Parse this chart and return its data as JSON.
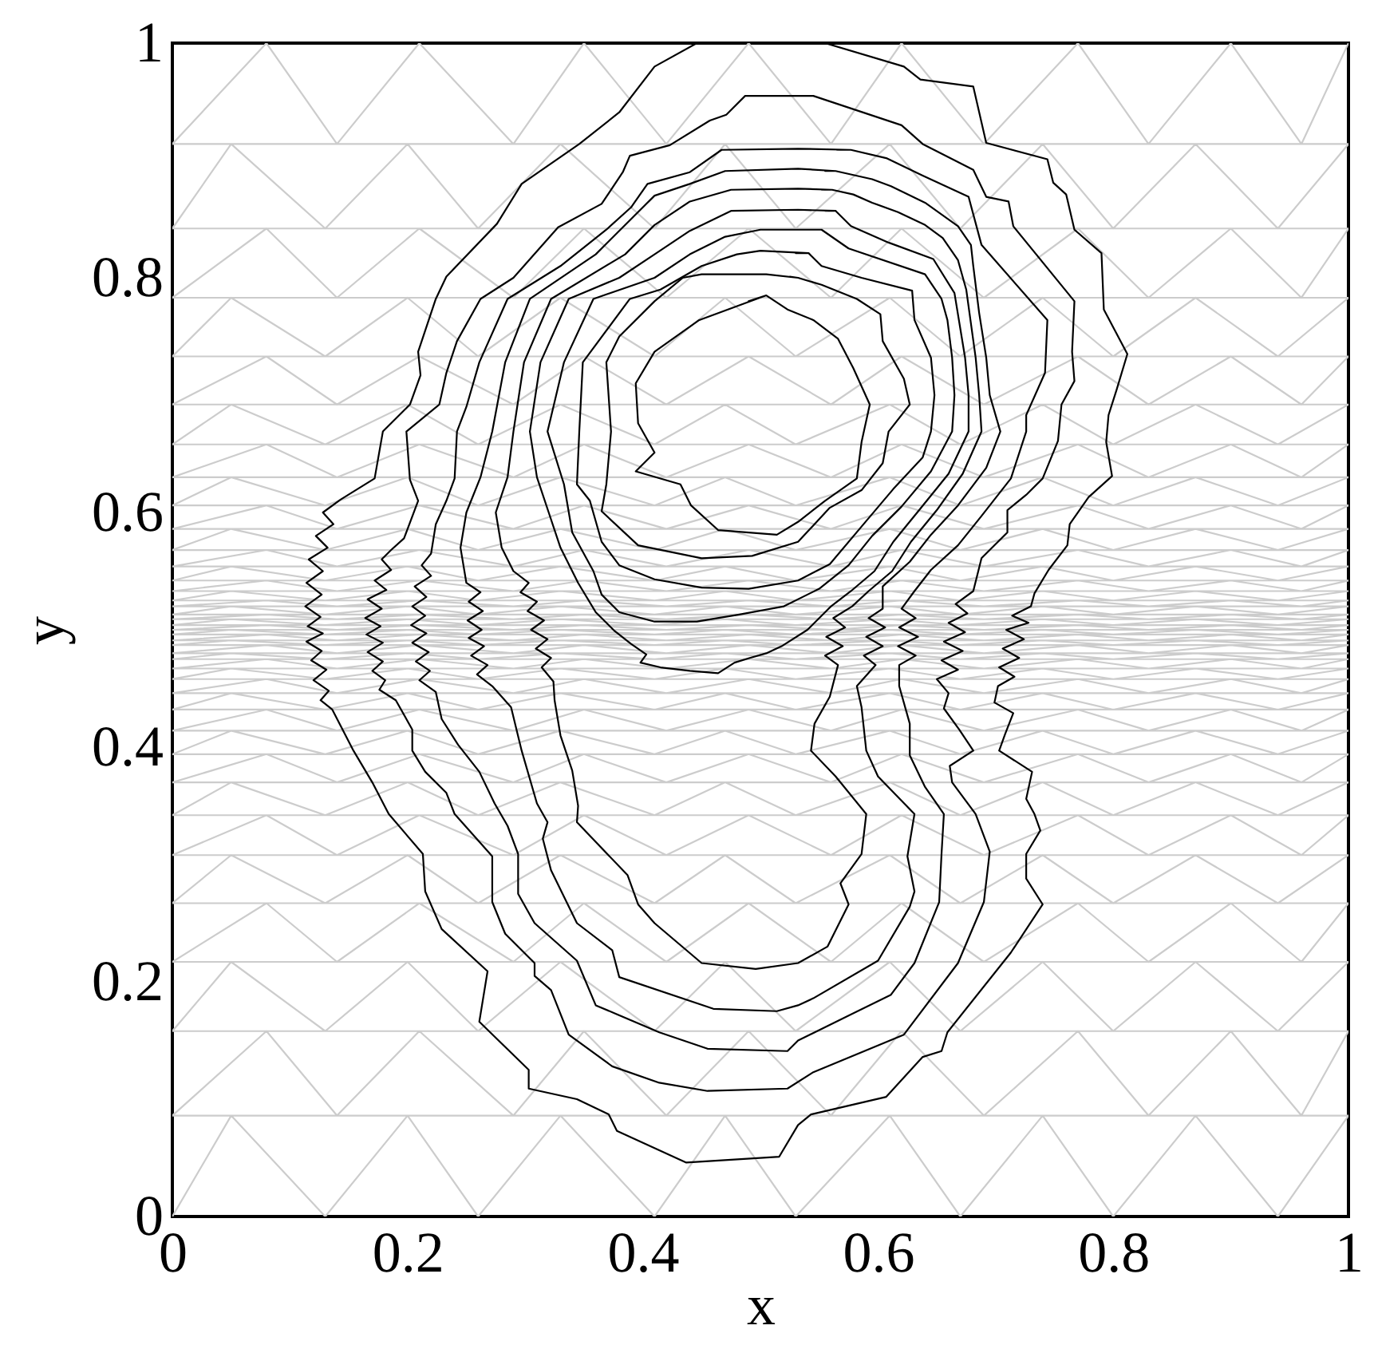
{
  "chart_data": {
    "type": "line",
    "xlabel": "x",
    "ylabel": "y",
    "xlim": [
      0,
      1
    ],
    "ylim": [
      0,
      1
    ],
    "xticks": [
      0,
      0.2,
      0.4,
      0.6,
      0.8,
      1
    ],
    "yticks": [
      0,
      0.2,
      0.4,
      0.6,
      0.8,
      1
    ],
    "series": [
      {
        "color": "#cccccc",
        "x": [
          0,
          0.05,
          0.13,
          0.2,
          0.26,
          0.33,
          0.41,
          0.47,
          0.53,
          0.61,
          0.67,
          0.74,
          0.8,
          0.87,
          0.94,
          1,
          0,
          0.08,
          0.14,
          0.21,
          0.29,
          0.35,
          0.42,
          0.49,
          0.56,
          0.62,
          0.69,
          0.77,
          0.83,
          0.9,
          0.96,
          1,
          0,
          0.05,
          0.13,
          0.2,
          0.26,
          0.33,
          0.41,
          0.47,
          0.53,
          0.61,
          0.67,
          0.74,
          0.8,
          0.87,
          0.94,
          1,
          0,
          0.08,
          0.14,
          0.21,
          0.29,
          0.35,
          0.42,
          0.49,
          0.56,
          0.62,
          0.69,
          0.77,
          0.83,
          0.9,
          0.96,
          1,
          0,
          0.05,
          0.13,
          0.2,
          0.26,
          0.33,
          0.41,
          0.47,
          0.53,
          0.61,
          0.67,
          0.74,
          0.8,
          0.87,
          0.94,
          1,
          0,
          0.08,
          0.14,
          0.21,
          0.29,
          0.35,
          0.42,
          0.49,
          0.56,
          0.62,
          0.69,
          0.77,
          0.83,
          0.9,
          0.96,
          1,
          0,
          0.05,
          0.13,
          0.2,
          0.26,
          0.33,
          0.41,
          0.47,
          0.53,
          0.61,
          0.67,
          0.74,
          0.8,
          0.87,
          0.94,
          1,
          0,
          0.08,
          0.14,
          0.21,
          0.29,
          0.35,
          0.42,
          0.49,
          0.56,
          0.62,
          0.69,
          0.77,
          0.83,
          0.9,
          0.96,
          1,
          0,
          0.05,
          0.13,
          0.2,
          0.26,
          0.33,
          0.41,
          0.47,
          0.53,
          0.61,
          0.67,
          0.74,
          0.8,
          0.87,
          0.94,
          1,
          0,
          0.08,
          0.14,
          0.21,
          0.29,
          0.35,
          0.42,
          0.49,
          0.56,
          0.62,
          0.69,
          0.77,
          0.83,
          0.9,
          0.96,
          1,
          0,
          0.05,
          0.13,
          0.2,
          0.26,
          0.33,
          0.41,
          0.47,
          0.53,
          0.61,
          0.67,
          0.74,
          0.8,
          0.87,
          0.94,
          1,
          0,
          0.08,
          0.14,
          0.21,
          0.29,
          0.35,
          0.42,
          0.49,
          0.56,
          0.62,
          0.69,
          0.77,
          0.83,
          0.9,
          0.96,
          1,
          0,
          0.05,
          0.13,
          0.2,
          0.26,
          0.33,
          0.41,
          0.47,
          0.53,
          0.61,
          0.67,
          0.74,
          0.8,
          0.87,
          0.94,
          1,
          0,
          0.08,
          0.14,
          0.21,
          0.29,
          0.35,
          0.42,
          0.49,
          0.56,
          0.62,
          0.69,
          0.77,
          0.83,
          0.9,
          0.96,
          1,
          0,
          0.05,
          0.13,
          0.2,
          0.26,
          0.33,
          0.41,
          0.47,
          0.53,
          0.61,
          0.67,
          0.74,
          0.8,
          0.87,
          0.94,
          1,
          0,
          0.08,
          0.14,
          0.21,
          0.29,
          0.35,
          0.42,
          0.49,
          0.56,
          0.62,
          0.69,
          0.77,
          0.83,
          0.9,
          0.96,
          1,
          0,
          0.05,
          0.13,
          0.2,
          0.26,
          0.33,
          0.41,
          0.47,
          0.53,
          0.61,
          0.67,
          0.74,
          0.8,
          0.87,
          0.94,
          1,
          0,
          0.08,
          0.14,
          0.21,
          0.29,
          0.35,
          0.42,
          0.49,
          0.56,
          0.62,
          0.69,
          0.77,
          0.83,
          0.9,
          0.96,
          1,
          0,
          0.05,
          0.13,
          0.2,
          0.26,
          0.33,
          0.41,
          0.47,
          0.53,
          0.61,
          0.67,
          0.74,
          0.8,
          0.87,
          0.94,
          1,
          0,
          0.08,
          0.14,
          0.21,
          0.29,
          0.35,
          0.42,
          0.49,
          0.56,
          0.62,
          0.69,
          0.77,
          0.83,
          0.9,
          0.96,
          1,
          0,
          0.05,
          0.13,
          0.2,
          0.26,
          0.33,
          0.41,
          0.47,
          0.53,
          0.61,
          0.67,
          0.74,
          0.8,
          0.87,
          0.94,
          1,
          0,
          0.08,
          0.14,
          0.21,
          0.29,
          0.35,
          0.42,
          0.49,
          0.56,
          0.62,
          0.69,
          0.77,
          0.83,
          0.9,
          0.96,
          1,
          0,
          0.05,
          0.13,
          0.2,
          0.26,
          0.33,
          0.41,
          0.47,
          0.53,
          0.61,
          0.67,
          0.74,
          0.8,
          0.87,
          0.94,
          1,
          0,
          0.08,
          0.14,
          0.21,
          0.29,
          0.35,
          0.42,
          0.49,
          0.56,
          0.62,
          0.69,
          0.77,
          0.83,
          0.9,
          0.96,
          1,
          0,
          0.05,
          0.13,
          0.2,
          0.26,
          0.33,
          0.41,
          0.47,
          0.53,
          0.61,
          0.67,
          0.74,
          0.8,
          0.87,
          0.94,
          1,
          0,
          0.08,
          0.14,
          0.21,
          0.29,
          0.35,
          0.42,
          0.49,
          0.56,
          0.62,
          0.69,
          0.77,
          0.83,
          0.9,
          0.96,
          1,
          0,
          0.05,
          0.13,
          0.2,
          0.26,
          0.33,
          0.41,
          0.47,
          0.53,
          0.61,
          0.67,
          0.74,
          0.8,
          0.87,
          0.94,
          1,
          0,
          0.08,
          0.14,
          0.21,
          0.29,
          0.35,
          0.42,
          0.49,
          0.56,
          0.62,
          0.69,
          0.77,
          0.83,
          0.9,
          0.96,
          1,
          0,
          0.05,
          0.13,
          0.2,
          0.26,
          0.33,
          0.41,
          0.47,
          0.53,
          0.61,
          0.67,
          0.74,
          0.8,
          0.87,
          0.94,
          1,
          0,
          0.08,
          0.14,
          0.21,
          0.29,
          0.35,
          0.42,
          0.49,
          0.56,
          0.62,
          0.69,
          0.77,
          0.83,
          0.9,
          0.96,
          1,
          0,
          0.05,
          0.13,
          0.2,
          0.26,
          0.33,
          0.41,
          0.47,
          0.53,
          0.61,
          0.67,
          0.74,
          0.8,
          0.87,
          0.94,
          1,
          0,
          0.08,
          0.14,
          0.21,
          0.29,
          0.35,
          0.42,
          0.49,
          0.56,
          0.62,
          0.69,
          0.77,
          0.83,
          0.9,
          0.96,
          1,
          0,
          0.05,
          0.13,
          0.2,
          0.26,
          0.33,
          0.41,
          0.47,
          0.53,
          0.61,
          0.67,
          0.74,
          0.8,
          0.87,
          0.94,
          1,
          0,
          0.08,
          0.14,
          0.21,
          0.29,
          0.35,
          0.42,
          0.49,
          0.56,
          0.62,
          0.69,
          0.77,
          0.83,
          0.9,
          0.96,
          1,
          0,
          0.05,
          0.13,
          0.2,
          0.26,
          0.33,
          0.41,
          0.47,
          0.53,
          0.61,
          0.67,
          0.74,
          0.8,
          0.87,
          0.94,
          1,
          0,
          0.08,
          0.14,
          0.21,
          0.29,
          0.35,
          0.42,
          0.49,
          0.56,
          0.62,
          0.69,
          0.77,
          0.83,
          0.9,
          0.96,
          1,
          0,
          0.05,
          0.13,
          0.2,
          0.26,
          0.33,
          0.41,
          0.47,
          0.53,
          0.61,
          0.67,
          0.74,
          0.8,
          0.87,
          0.94,
          1,
          0,
          0.08,
          0.14,
          0.21,
          0.29,
          0.35,
          0.42,
          0.49,
          0.56,
          0.62,
          0.69,
          0.77,
          0.83,
          0.9,
          0.96,
          1
        ],
        "values": [
          0,
          0.086,
          0,
          0.086,
          0,
          0.086,
          0,
          0.086,
          0,
          0.086,
          0,
          0.086,
          0,
          0.086,
          0,
          0.086,
          0.086,
          0.158,
          0.086,
          0.158,
          0.086,
          0.158,
          0.086,
          0.158,
          0.086,
          0.158,
          0.086,
          0.158,
          0.086,
          0.158,
          0.086,
          0.158,
          0.158,
          0.217,
          0.158,
          0.217,
          0.158,
          0.217,
          0.158,
          0.217,
          0.158,
          0.217,
          0.158,
          0.217,
          0.158,
          0.217,
          0.158,
          0.217,
          0.217,
          0.267,
          0.217,
          0.267,
          0.217,
          0.267,
          0.217,
          0.267,
          0.217,
          0.267,
          0.217,
          0.267,
          0.217,
          0.267,
          0.217,
          0.267,
          0.267,
          0.308,
          0.267,
          0.308,
          0.267,
          0.308,
          0.267,
          0.308,
          0.267,
          0.308,
          0.267,
          0.308,
          0.267,
          0.308,
          0.267,
          0.308,
          0.308,
          0.342,
          0.308,
          0.342,
          0.308,
          0.342,
          0.308,
          0.342,
          0.308,
          0.342,
          0.308,
          0.342,
          0.308,
          0.342,
          0.308,
          0.342,
          0.342,
          0.37,
          0.342,
          0.37,
          0.342,
          0.37,
          0.342,
          0.37,
          0.342,
          0.37,
          0.342,
          0.37,
          0.342,
          0.37,
          0.342,
          0.37,
          0.37,
          0.394,
          0.37,
          0.394,
          0.37,
          0.394,
          0.37,
          0.394,
          0.37,
          0.394,
          0.37,
          0.394,
          0.37,
          0.394,
          0.37,
          0.394,
          0.394,
          0.414,
          0.394,
          0.414,
          0.394,
          0.414,
          0.394,
          0.414,
          0.394,
          0.414,
          0.394,
          0.414,
          0.394,
          0.414,
          0.394,
          0.414,
          0.414,
          0.432,
          0.414,
          0.432,
          0.414,
          0.432,
          0.414,
          0.432,
          0.414,
          0.432,
          0.414,
          0.432,
          0.414,
          0.432,
          0.414,
          0.432,
          0.432,
          0.446,
          0.432,
          0.446,
          0.432,
          0.446,
          0.432,
          0.446,
          0.432,
          0.446,
          0.432,
          0.446,
          0.432,
          0.446,
          0.432,
          0.446,
          0.446,
          0.458,
          0.446,
          0.458,
          0.446,
          0.458,
          0.446,
          0.458,
          0.446,
          0.458,
          0.446,
          0.458,
          0.446,
          0.458,
          0.446,
          0.458,
          0.458,
          0.467,
          0.458,
          0.467,
          0.458,
          0.467,
          0.458,
          0.467,
          0.458,
          0.467,
          0.458,
          0.467,
          0.458,
          0.467,
          0.458,
          0.467,
          0.467,
          0.475,
          0.467,
          0.475,
          0.467,
          0.475,
          0.467,
          0.475,
          0.467,
          0.475,
          0.467,
          0.475,
          0.467,
          0.475,
          0.467,
          0.475,
          0.475,
          0.48,
          0.475,
          0.48,
          0.475,
          0.48,
          0.475,
          0.48,
          0.475,
          0.48,
          0.475,
          0.48,
          0.475,
          0.48,
          0.475,
          0.48,
          0.48,
          0.487,
          0.48,
          0.487,
          0.48,
          0.487,
          0.48,
          0.487,
          0.48,
          0.487,
          0.48,
          0.487,
          0.48,
          0.487,
          0.48,
          0.487,
          0.487,
          0.491,
          0.487,
          0.491,
          0.487,
          0.491,
          0.487,
          0.491,
          0.487,
          0.491,
          0.487,
          0.491,
          0.487,
          0.491,
          0.487,
          0.491,
          0.491,
          0.496,
          0.491,
          0.496,
          0.491,
          0.496,
          0.491,
          0.496,
          0.491,
          0.496,
          0.491,
          0.496,
          0.491,
          0.496,
          0.491,
          0.496,
          0.496,
          0.5,
          0.496,
          0.5,
          0.496,
          0.5,
          0.496,
          0.5,
          0.496,
          0.5,
          0.496,
          0.5,
          0.496,
          0.5,
          0.496,
          0.5,
          0.5,
          0.504,
          0.5,
          0.504,
          0.5,
          0.504,
          0.5,
          0.504,
          0.5,
          0.504,
          0.5,
          0.504,
          0.5,
          0.504,
          0.5,
          0.504,
          0.504,
          0.509,
          0.504,
          0.509,
          0.504,
          0.509,
          0.504,
          0.509,
          0.504,
          0.509,
          0.504,
          0.509,
          0.504,
          0.509,
          0.504,
          0.509,
          0.509,
          0.513,
          0.509,
          0.513,
          0.509,
          0.513,
          0.509,
          0.513,
          0.509,
          0.513,
          0.509,
          0.513,
          0.509,
          0.513,
          0.509,
          0.513,
          0.513,
          0.52,
          0.513,
          0.52,
          0.513,
          0.52,
          0.513,
          0.52,
          0.513,
          0.52,
          0.513,
          0.52,
          0.513,
          0.52,
          0.513,
          0.52,
          0.52,
          0.525,
          0.52,
          0.525,
          0.52,
          0.525,
          0.52,
          0.525,
          0.52,
          0.525,
          0.52,
          0.525,
          0.52,
          0.525,
          0.52,
          0.525,
          0.525,
          0.533,
          0.525,
          0.533,
          0.525,
          0.533,
          0.525,
          0.533,
          0.525,
          0.533,
          0.525,
          0.533,
          0.525,
          0.533,
          0.525,
          0.533,
          0.533,
          0.542,
          0.533,
          0.542,
          0.533,
          0.542,
          0.533,
          0.542,
          0.533,
          0.542,
          0.533,
          0.542,
          0.533,
          0.542,
          0.533,
          0.542,
          0.542,
          0.554,
          0.542,
          0.554,
          0.542,
          0.554,
          0.542,
          0.554,
          0.542,
          0.554,
          0.542,
          0.554,
          0.542,
          0.554,
          0.542,
          0.554,
          0.554,
          0.568,
          0.554,
          0.568,
          0.554,
          0.568,
          0.554,
          0.568,
          0.554,
          0.568,
          0.554,
          0.568,
          0.554,
          0.568,
          0.554,
          0.568,
          0.568,
          0.586,
          0.568,
          0.586,
          0.568,
          0.586,
          0.568,
          0.586,
          0.568,
          0.586,
          0.568,
          0.586,
          0.568,
          0.586,
          0.568,
          0.586,
          0.586,
          0.606,
          0.586,
          0.606,
          0.586,
          0.606,
          0.586,
          0.606,
          0.586,
          0.606,
          0.586,
          0.606,
          0.586,
          0.606,
          0.586,
          0.606,
          0.606,
          0.63,
          0.606,
          0.63,
          0.606,
          0.63,
          0.606,
          0.63,
          0.606,
          0.63,
          0.606,
          0.63,
          0.606,
          0.63,
          0.606,
          0.63,
          0.63,
          0.658,
          0.63,
          0.658,
          0.63,
          0.658,
          0.63,
          0.658,
          0.63,
          0.658,
          0.63,
          0.658,
          0.63,
          0.658,
          0.63,
          0.658,
          0.658,
          0.692,
          0.658,
          0.692,
          0.658,
          0.692,
          0.658,
          0.692,
          0.658,
          0.692,
          0.658,
          0.692,
          0.658,
          0.692,
          0.658,
          0.692,
          0.692,
          0.733,
          0.692,
          0.733,
          0.692,
          0.733,
          0.692,
          0.733,
          0.692,
          0.733,
          0.692,
          0.733,
          0.692,
          0.733,
          0.692,
          0.733,
          0.733,
          0.783,
          0.733,
          0.783,
          0.733,
          0.783,
          0.733,
          0.783,
          0.733,
          0.783,
          0.733,
          0.783,
          0.733,
          0.783,
          0.733,
          0.783,
          0.783,
          0.842,
          0.783,
          0.842,
          0.783,
          0.842,
          0.783,
          0.842,
          0.783,
          0.842,
          0.783,
          0.842,
          0.783,
          0.842,
          0.783,
          0.842,
          0.842,
          0.914,
          0.842,
          0.914,
          0.842,
          0.914,
          0.842,
          0.914,
          0.842,
          0.914,
          0.842,
          0.914,
          0.842,
          0.914,
          0.842,
          0.914,
          0.914,
          1,
          0.914,
          1,
          0.914,
          1,
          0.914,
          1,
          0.914,
          1,
          0.914,
          1,
          0.914,
          1,
          0.914,
          1
        ]
      },
      {
        "color": "#000000",
        "x": [
          0.446,
          0.41,
          0.38,
          0.346,
          0.297,
          0.276,
          0.233,
          0.224,
          0.209,
          0.211,
          0.202,
          0.179,
          0.172,
          0.143,
          0.128,
          0.137,
          0.122,
          0.132,
          0.116,
          0.128,
          0.114,
          0.127,
          0.113,
          0.126,
          0.115,
          0.128,
          0.114,
          0.127,
          0.118,
          0.131,
          0.12,
          0.133,
          0.126,
          0.136,
          0.154,
          0.17,
          0.184,
          0.213,
          0.215,
          0.229,
          0.268,
          0.261,
          0.303,
          0.303,
          0.344,
          0.371,
          0.378,
          0.437,
          0.516,
          0.532,
          0.543,
          0.607,
          0.638,
          0.654,
          0.659,
          0.713,
          0.74,
          0.726,
          0.726,
          0.738,
          0.733,
          0.726,
          0.731,
          0.703,
          0.708,
          0.715,
          0.699,
          0.702,
          0.716,
          0.703,
          0.72,
          0.706,
          0.724,
          0.709,
          0.728,
          0.714,
          0.73,
          0.733,
          0.745,
          0.761,
          0.763,
          0.779,
          0.799,
          0.794,
          0.796,
          0.803,
          0.812,
          0.792,
          0.79,
          0.767,
          0.76,
          0.749,
          0.744,
          0.692,
          0.681,
          0.636,
          0.622,
          0.555
        ],
        "values": [
          1,
          0.98,
          0.941,
          0.914,
          0.88,
          0.846,
          0.801,
          0.782,
          0.737,
          0.717,
          0.692,
          0.669,
          0.629,
          0.611,
          0.6,
          0.59,
          0.58,
          0.57,
          0.56,
          0.55,
          0.54,
          0.53,
          0.52,
          0.511,
          0.503,
          0.497,
          0.49,
          0.482,
          0.474,
          0.466,
          0.457,
          0.448,
          0.44,
          0.432,
          0.397,
          0.37,
          0.343,
          0.309,
          0.277,
          0.245,
          0.209,
          0.166,
          0.125,
          0.109,
          0.1,
          0.087,
          0.073,
          0.046,
          0.051,
          0.078,
          0.087,
          0.102,
          0.136,
          0.141,
          0.157,
          0.225,
          0.266,
          0.288,
          0.309,
          0.329,
          0.343,
          0.356,
          0.379,
          0.397,
          0.411,
          0.429,
          0.438,
          0.452,
          0.46,
          0.468,
          0.476,
          0.484,
          0.492,
          0.5,
          0.506,
          0.512,
          0.52,
          0.531,
          0.551,
          0.572,
          0.59,
          0.613,
          0.631,
          0.66,
          0.683,
          0.705,
          0.735,
          0.773,
          0.821,
          0.841,
          0.871,
          0.881,
          0.901,
          0.915,
          0.963,
          0.969,
          0.98,
          1
        ]
      },
      {
        "color": "#000000",
        "x": [
          0.545,
          0.487,
          0.471,
          0.457,
          0.423,
          0.389,
          0.383,
          0.365,
          0.328,
          0.29,
          0.262,
          0.242,
          0.233,
          0.227,
          0.199,
          0.202,
          0.209,
          0.197,
          0.186,
          0.178,
          0.186,
          0.172,
          0.182,
          0.166,
          0.178,
          0.164,
          0.177,
          0.165,
          0.179,
          0.166,
          0.179,
          0.17,
          0.181,
          0.176,
          0.19,
          0.204,
          0.204,
          0.215,
          0.233,
          0.24,
          0.272,
          0.272,
          0.283,
          0.308,
          0.308,
          0.322,
          0.337,
          0.374,
          0.414,
          0.455,
          0.523,
          0.545,
          0.622,
          0.668,
          0.69,
          0.695,
          0.683,
          0.663,
          0.661,
          0.681,
          0.669,
          0.656,
          0.66,
          0.65,
          0.668,
          0.654,
          0.672,
          0.656,
          0.674,
          0.66,
          0.676,
          0.666,
          0.681,
          0.688,
          0.71,
          0.71,
          0.726,
          0.74,
          0.753,
          0.756,
          0.767,
          0.765,
          0.767,
          0.715,
          0.711,
          0.692,
          0.681,
          0.638,
          0.62,
          0.545,
          0.53
        ],
        "values": [
          0.955,
          0.955,
          0.939,
          0.934,
          0.913,
          0.904,
          0.89,
          0.863,
          0.843,
          0.8,
          0.782,
          0.746,
          0.719,
          0.692,
          0.669,
          0.628,
          0.61,
          0.578,
          0.568,
          0.56,
          0.551,
          0.542,
          0.534,
          0.526,
          0.518,
          0.51,
          0.503,
          0.496,
          0.489,
          0.481,
          0.473,
          0.465,
          0.457,
          0.449,
          0.44,
          0.415,
          0.397,
          0.379,
          0.361,
          0.343,
          0.307,
          0.268,
          0.241,
          0.216,
          0.205,
          0.193,
          0.155,
          0.128,
          0.114,
          0.107,
          0.109,
          0.123,
          0.155,
          0.216,
          0.268,
          0.311,
          0.343,
          0.37,
          0.384,
          0.397,
          0.415,
          0.433,
          0.446,
          0.458,
          0.466,
          0.474,
          0.482,
          0.49,
          0.498,
          0.506,
          0.514,
          0.522,
          0.533,
          0.561,
          0.583,
          0.602,
          0.615,
          0.629,
          0.661,
          0.692,
          0.712,
          0.737,
          0.78,
          0.844,
          0.865,
          0.869,
          0.892,
          0.914,
          0.93,
          0.955,
          0.955
        ]
      },
      {
        "color": "#000000",
        "x": [
          0.577,
          0.532,
          0.467,
          0.44,
          0.404,
          0.39,
          0.369,
          0.33,
          0.285,
          0.261,
          0.25,
          0.242,
          0.24,
          0.233,
          0.224,
          0.22,
          0.212,
          0.22,
          0.206,
          0.216,
          0.204,
          0.215,
          0.203,
          0.216,
          0.204,
          0.218,
          0.207,
          0.219,
          0.21,
          0.224,
          0.229,
          0.243,
          0.261,
          0.274,
          0.285,
          0.294,
          0.294,
          0.308,
          0.344,
          0.36,
          0.414,
          0.455,
          0.523,
          0.532,
          0.611,
          0.631,
          0.652,
          0.654,
          0.656,
          0.64,
          0.627,
          0.627,
          0.618,
          0.618,
          0.632,
          0.617,
          0.634,
          0.618,
          0.632,
          0.62,
          0.631,
          0.645,
          0.668,
          0.688,
          0.713,
          0.726,
          0.726,
          0.742,
          0.744,
          0.688,
          0.677,
          0.638,
          0.607,
          0.577,
          0.565
        ],
        "values": [
          0.909,
          0.91,
          0.909,
          0.89,
          0.88,
          0.86,
          0.841,
          0.81,
          0.782,
          0.728,
          0.69,
          0.669,
          0.629,
          0.61,
          0.59,
          0.565,
          0.555,
          0.546,
          0.537,
          0.528,
          0.52,
          0.512,
          0.504,
          0.497,
          0.489,
          0.481,
          0.473,
          0.465,
          0.457,
          0.447,
          0.424,
          0.402,
          0.379,
          0.352,
          0.333,
          0.309,
          0.275,
          0.25,
          0.218,
          0.18,
          0.157,
          0.143,
          0.141,
          0.15,
          0.189,
          0.216,
          0.268,
          0.309,
          0.343,
          0.366,
          0.393,
          0.42,
          0.452,
          0.47,
          0.478,
          0.486,
          0.494,
          0.502,
          0.51,
          0.518,
          0.533,
          0.551,
          0.572,
          0.597,
          0.629,
          0.669,
          0.683,
          0.719,
          0.764,
          0.828,
          0.869,
          0.887,
          0.902,
          0.909,
          0.909
        ]
      },
      {
        "color": "#000000",
        "x": [
          0.564,
          0.532,
          0.47,
          0.44,
          0.41,
          0.39,
          0.36,
          0.304,
          0.283,
          0.272,
          0.262,
          0.25,
          0.245,
          0.25,
          0.262,
          0.252,
          0.264,
          0.251,
          0.263,
          0.252,
          0.265,
          0.254,
          0.268,
          0.259,
          0.272,
          0.288,
          0.297,
          0.31,
          0.319,
          0.315,
          0.322,
          0.344,
          0.374,
          0.38,
          0.46,
          0.514,
          0.532,
          0.545,
          0.6,
          0.627,
          0.631,
          0.625,
          0.631,
          0.6,
          0.59,
          0.586,
          0.582,
          0.598,
          0.588,
          0.604,
          0.59,
          0.606,
          0.592,
          0.604,
          0.604,
          0.627,
          0.645,
          0.668,
          0.692,
          0.704,
          0.695,
          0.692,
          0.686,
          0.681,
          0.679,
          0.668,
          0.64,
          0.611,
          0.595,
          0.564,
          0.555
        ],
        "values": [
          0.891,
          0.893,
          0.891,
          0.88,
          0.87,
          0.85,
          0.82,
          0.782,
          0.728,
          0.669,
          0.63,
          0.6,
          0.57,
          0.54,
          0.532,
          0.524,
          0.516,
          0.508,
          0.5,
          0.493,
          0.486,
          0.478,
          0.47,
          0.462,
          0.452,
          0.434,
          0.397,
          0.352,
          0.336,
          0.322,
          0.295,
          0.25,
          0.227,
          0.204,
          0.177,
          0.175,
          0.18,
          0.186,
          0.218,
          0.264,
          0.277,
          0.307,
          0.343,
          0.375,
          0.397,
          0.434,
          0.452,
          0.47,
          0.478,
          0.486,
          0.494,
          0.502,
          0.51,
          0.518,
          0.537,
          0.558,
          0.581,
          0.606,
          0.638,
          0.669,
          0.7,
          0.732,
          0.77,
          0.81,
          0.828,
          0.844,
          0.864,
          0.878,
          0.884,
          0.891,
          0.891
        ]
      },
      {
        "color": "#000000",
        "x": [
          0.561,
          0.532,
          0.475,
          0.44,
          0.41,
          0.385,
          0.322,
          0.299,
          0.29,
          0.285,
          0.275,
          0.28,
          0.29,
          0.303,
          0.296,
          0.31,
          0.302,
          0.316,
          0.305,
          0.319,
          0.309,
          0.322,
          0.314,
          0.324,
          0.325,
          0.33,
          0.34,
          0.345,
          0.344,
          0.387,
          0.396,
          0.41,
          0.45,
          0.496,
          0.532,
          0.557,
          0.575,
          0.568,
          0.586,
          0.59,
          0.564,
          0.543,
          0.546,
          0.559,
          0.566,
          0.555,
          0.57,
          0.556,
          0.572,
          0.562,
          0.578,
          0.592,
          0.612,
          0.628,
          0.65,
          0.672,
          0.688,
          0.686,
          0.683,
          0.675,
          0.668,
          0.655,
          0.64,
          0.617,
          0.595,
          0.579,
          0.561,
          0.552
        ],
        "values": [
          0.875,
          0.876,
          0.875,
          0.865,
          0.845,
          0.82,
          0.782,
          0.728,
          0.669,
          0.63,
          0.6,
          0.57,
          0.55,
          0.54,
          0.532,
          0.524,
          0.516,
          0.508,
          0.5,
          0.492,
          0.484,
          0.476,
          0.468,
          0.456,
          0.44,
          0.41,
          0.38,
          0.35,
          0.336,
          0.291,
          0.266,
          0.25,
          0.216,
          0.211,
          0.216,
          0.23,
          0.266,
          0.284,
          0.309,
          0.343,
          0.375,
          0.397,
          0.42,
          0.443,
          0.47,
          0.478,
          0.486,
          0.494,
          0.502,
          0.51,
          0.52,
          0.533,
          0.55,
          0.575,
          0.602,
          0.633,
          0.669,
          0.7,
          0.732,
          0.79,
          0.815,
          0.834,
          0.845,
          0.856,
          0.864,
          0.871,
          0.875,
          0.875
        ]
      },
      {
        "color": "#000000",
        "x": [
          0.564,
          0.532,
          0.475,
          0.44,
          0.41,
          0.38,
          0.337,
          0.313,
          0.304,
          0.31,
          0.32,
          0.33,
          0.345,
          0.36,
          0.376,
          0.39,
          0.403,
          0.398,
          0.415,
          0.44,
          0.464,
          0.478,
          0.491,
          0.505,
          0.518,
          0.54,
          0.56,
          0.577,
          0.597,
          0.613,
          0.635,
          0.66,
          0.677,
          0.677,
          0.674,
          0.665,
          0.647,
          0.609,
          0.577,
          0.564,
          0.555
        ],
        "values": [
          0.857,
          0.858,
          0.857,
          0.84,
          0.82,
          0.8,
          0.782,
          0.728,
          0.669,
          0.63,
          0.6,
          0.57,
          0.54,
          0.515,
          0.499,
          0.488,
          0.479,
          0.472,
          0.468,
          0.465,
          0.463,
          0.472,
          0.476,
          0.48,
          0.486,
          0.5,
          0.52,
          0.533,
          0.55,
          0.575,
          0.602,
          0.633,
          0.669,
          0.7,
          0.732,
          0.787,
          0.816,
          0.83,
          0.844,
          0.857,
          0.857
        ]
      },
      {
        "color": "#000000",
        "x": [
          0.552,
          0.5,
          0.47,
          0.44,
          0.41,
          0.358,
          0.333,
          0.319,
          0.333,
          0.34,
          0.358,
          0.365,
          0.38,
          0.41,
          0.446,
          0.482,
          0.52,
          0.55,
          0.575,
          0.595,
          0.62,
          0.645,
          0.663,
          0.665,
          0.663,
          0.659,
          0.654,
          0.64,
          0.575,
          0.552,
          0.54
        ],
        "values": [
          0.841,
          0.841,
          0.835,
          0.82,
          0.8,
          0.782,
          0.728,
          0.669,
          0.624,
          0.583,
          0.55,
          0.53,
          0.515,
          0.507,
          0.507,
          0.513,
          0.52,
          0.535,
          0.555,
          0.58,
          0.605,
          0.635,
          0.669,
          0.7,
          0.732,
          0.764,
          0.782,
          0.803,
          0.825,
          0.841,
          0.841
        ]
      },
      {
        "color": "#000000",
        "x": [
          0.541,
          0.5,
          0.48,
          0.45,
          0.415,
          0.389,
          0.349,
          0.346,
          0.344,
          0.355,
          0.365,
          0.38,
          0.41,
          0.45,
          0.49,
          0.532,
          0.559,
          0.586,
          0.613,
          0.638,
          0.645,
          0.648,
          0.645,
          0.631,
          0.629,
          0.586,
          0.552,
          0.541,
          0.53
        ],
        "values": [
          0.821,
          0.823,
          0.82,
          0.81,
          0.79,
          0.782,
          0.728,
          0.669,
          0.624,
          0.61,
          0.575,
          0.555,
          0.543,
          0.536,
          0.535,
          0.542,
          0.556,
          0.588,
          0.62,
          0.647,
          0.669,
          0.7,
          0.732,
          0.764,
          0.789,
          0.8,
          0.81,
          0.821,
          0.821
        ]
      },
      {
        "color": "#000000",
        "x": [
          0.532,
          0.505,
          0.45,
          0.434,
          0.41,
          0.38,
          0.369,
          0.373,
          0.369,
          0.365,
          0.396,
          0.45,
          0.493,
          0.532,
          0.559,
          0.586,
          0.604,
          0.609,
          0.627,
          0.622,
          0.604,
          0.602,
          0.582,
          0.552,
          0.532,
          0.525
        ],
        "values": [
          0.8,
          0.803,
          0.803,
          0.8,
          0.78,
          0.75,
          0.728,
          0.669,
          0.624,
          0.601,
          0.572,
          0.561,
          0.563,
          0.575,
          0.604,
          0.619,
          0.642,
          0.669,
          0.692,
          0.714,
          0.746,
          0.769,
          0.782,
          0.794,
          0.8,
          0.801
        ]
      },
      {
        "color": "#000000",
        "x": [
          0.505,
          0.448,
          0.41,
          0.394,
          0.396,
          0.41,
          0.394,
          0.432,
          0.441,
          0.464,
          0.514,
          0.532,
          0.555,
          0.582,
          0.586,
          0.593,
          0.579,
          0.566,
          0.545,
          0.523,
          0.505,
          0.49
        ],
        "values": [
          0.785,
          0.764,
          0.737,
          0.71,
          0.676,
          0.651,
          0.635,
          0.624,
          0.606,
          0.585,
          0.581,
          0.592,
          0.61,
          0.629,
          0.66,
          0.692,
          0.723,
          0.748,
          0.764,
          0.773,
          0.785,
          0.78
        ]
      }
    ]
  }
}
